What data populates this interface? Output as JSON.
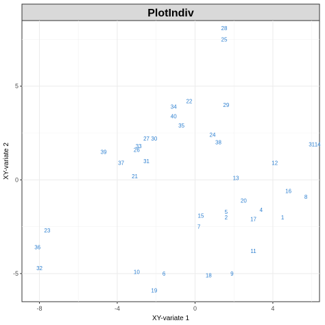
{
  "chart_data": {
    "type": "scatter",
    "title": "PlotIndiv",
    "xlabel": "XY-variate 1",
    "ylabel": "XY-variate 2",
    "xlim": [
      -8.9,
      6.4
    ],
    "ylim": [
      -6.5,
      8.5
    ],
    "xticks": [
      -8,
      -4,
      0,
      4
    ],
    "yticks": [
      -5,
      0,
      5
    ],
    "grid": true,
    "point_color": "#2c7fd0",
    "points": [
      {
        "label": "28",
        "x": 1.5,
        "y": 8.1
      },
      {
        "label": "25",
        "x": 1.5,
        "y": 7.5
      },
      {
        "label": "22",
        "x": -0.3,
        "y": 4.2
      },
      {
        "label": "29",
        "x": 1.6,
        "y": 4.0
      },
      {
        "label": "34",
        "x": -1.1,
        "y": 3.9
      },
      {
        "label": "40",
        "x": -1.1,
        "y": 3.4
      },
      {
        "label": "35",
        "x": -0.7,
        "y": 2.9
      },
      {
        "label": "24",
        "x": 0.9,
        "y": 2.4
      },
      {
        "label": "27",
        "x": -2.5,
        "y": 2.2
      },
      {
        "label": "30",
        "x": -2.1,
        "y": 2.2
      },
      {
        "label": "38",
        "x": 1.2,
        "y": 2.0
      },
      {
        "label": "31",
        "x": 6.0,
        "y": 1.9
      },
      {
        "label": "14",
        "x": 6.3,
        "y": 1.9
      },
      {
        "label": "33",
        "x": -2.9,
        "y": 1.8
      },
      {
        "label": "26",
        "x": -3.0,
        "y": 1.6
      },
      {
        "label": "39",
        "x": -4.7,
        "y": 1.5
      },
      {
        "label": "37",
        "x": -3.8,
        "y": 0.9
      },
      {
        "label": "31",
        "x": -2.5,
        "y": 1.0
      },
      {
        "label": "12",
        "x": 4.1,
        "y": 0.9
      },
      {
        "label": "21",
        "x": -3.1,
        "y": 0.2
      },
      {
        "label": "13",
        "x": 2.1,
        "y": 0.1
      },
      {
        "label": "16",
        "x": 4.8,
        "y": -0.6
      },
      {
        "label": "8",
        "x": 5.7,
        "y": -0.9
      },
      {
        "label": "20",
        "x": 2.5,
        "y": -1.1
      },
      {
        "label": "4",
        "x": 3.4,
        "y": -1.6
      },
      {
        "label": "5",
        "x": 1.6,
        "y": -1.7
      },
      {
        "label": "2",
        "x": 1.6,
        "y": -2.0
      },
      {
        "label": "15",
        "x": 0.3,
        "y": -1.9
      },
      {
        "label": "17",
        "x": 3.0,
        "y": -2.1
      },
      {
        "label": "1",
        "x": 4.5,
        "y": -2.0
      },
      {
        "label": "7",
        "x": 0.2,
        "y": -2.5
      },
      {
        "label": "23",
        "x": -7.6,
        "y": -2.7
      },
      {
        "label": "36",
        "x": -8.1,
        "y": -3.6
      },
      {
        "label": "11",
        "x": 3.0,
        "y": -3.8
      },
      {
        "label": "32",
        "x": -8.0,
        "y": -4.7
      },
      {
        "label": "10",
        "x": -3.0,
        "y": -4.9
      },
      {
        "label": "6",
        "x": -1.6,
        "y": -5.0
      },
      {
        "label": "18",
        "x": 0.7,
        "y": -5.1
      },
      {
        "label": "9",
        "x": 1.9,
        "y": -5.0
      },
      {
        "label": "19",
        "x": -2.1,
        "y": -5.9
      }
    ]
  }
}
